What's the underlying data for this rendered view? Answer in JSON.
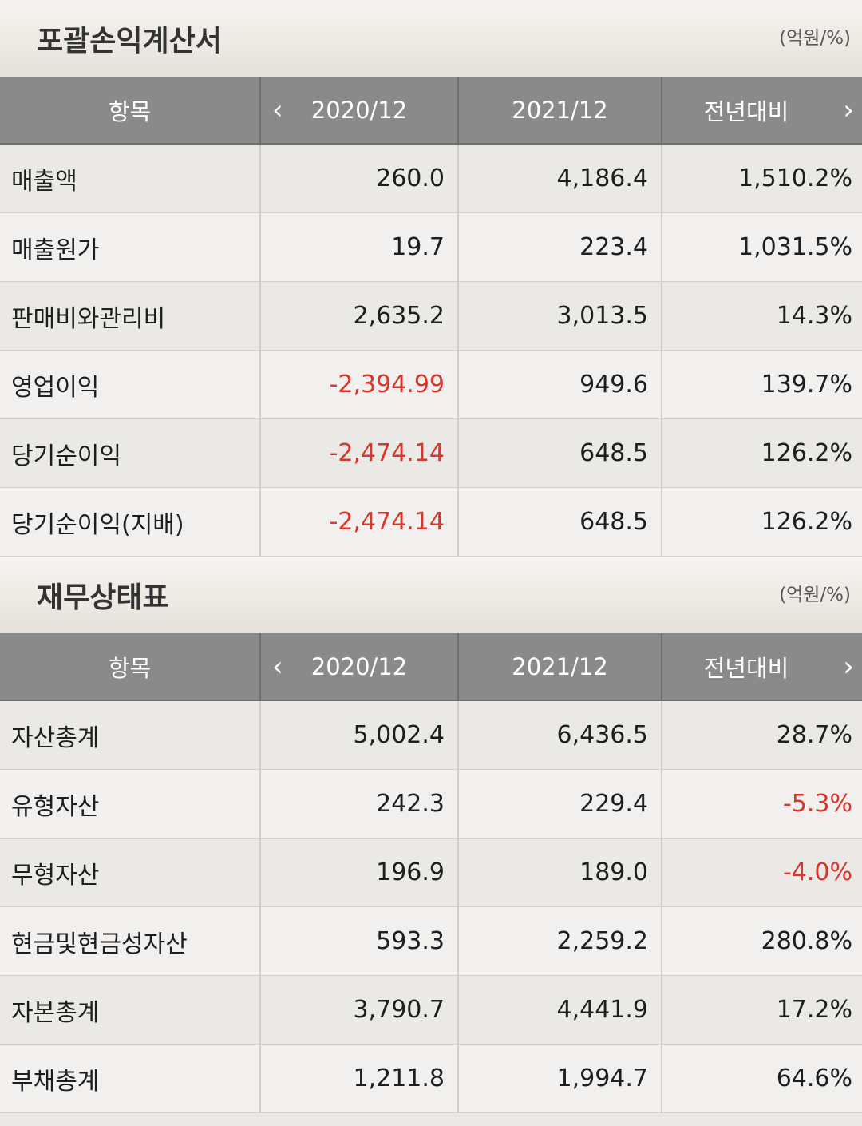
{
  "income": {
    "title": "포괄손익계산서",
    "unit": "(억원/%)",
    "headers": {
      "item": "항목",
      "col1": "2020/12",
      "col2": "2021/12",
      "col3": "전년대비"
    },
    "rows": [
      {
        "label": "매출액",
        "v1": "260.0",
        "v2": "4,186.4",
        "v3": "1,510.2%"
      },
      {
        "label": "매출원가",
        "v1": "19.7",
        "v2": "223.4",
        "v3": "1,031.5%"
      },
      {
        "label": "판매비와관리비",
        "v1": "2,635.2",
        "v2": "3,013.5",
        "v3": "14.3%"
      },
      {
        "label": "영업이익",
        "v1": "-2,394.99",
        "v2": "949.6",
        "v3": "139.7%"
      },
      {
        "label": "당기순이익",
        "v1": "-2,474.14",
        "v2": "648.5",
        "v3": "126.2%"
      },
      {
        "label": "당기순이익(지배)",
        "v1": "-2,474.14",
        "v2": "648.5",
        "v3": "126.2%"
      }
    ]
  },
  "balance": {
    "title": "재무상태표",
    "unit": "(억원/%)",
    "headers": {
      "item": "항목",
      "col1": "2020/12",
      "col2": "2021/12",
      "col3": "전년대비"
    },
    "rows": [
      {
        "label": "자산총계",
        "v1": "5,002.4",
        "v2": "6,436.5",
        "v3": "28.7%"
      },
      {
        "label": "유형자산",
        "v1": "242.3",
        "v2": "229.4",
        "v3": "-5.3%"
      },
      {
        "label": "무형자산",
        "v1": "196.9",
        "v2": "189.0",
        "v3": "-4.0%"
      },
      {
        "label": "현금및현금성자산",
        "v1": "593.3",
        "v2": "2,259.2",
        "v3": "280.8%"
      },
      {
        "label": "자본총계",
        "v1": "3,790.7",
        "v2": "4,441.9",
        "v3": "17.2%"
      },
      {
        "label": "부채총계",
        "v1": "1,211.8",
        "v2": "1,994.7",
        "v3": "64.6%"
      }
    ]
  },
  "icons": {
    "prev": "chevron-left-icon",
    "next": "chevron-right-icon"
  },
  "colors": {
    "negative": "#d9352b",
    "header_bg": "#8a8a8a"
  }
}
